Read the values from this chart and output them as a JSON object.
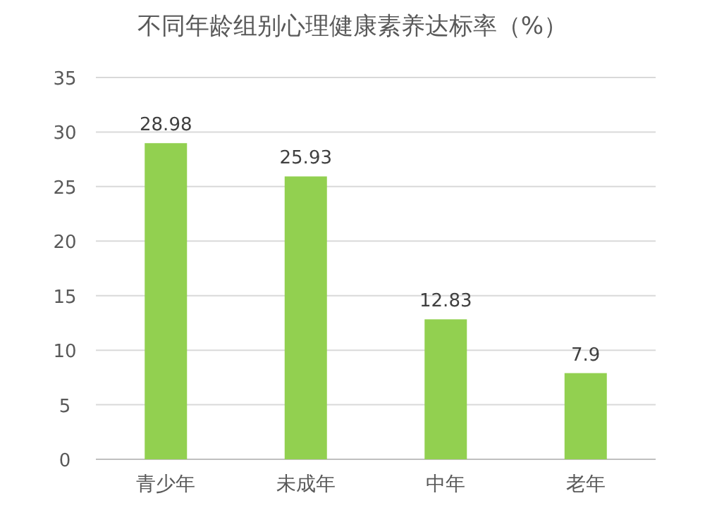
{
  "chart_data": {
    "type": "bar",
    "title": "不同年龄组别心理健康素养达标率（%）",
    "categories": [
      "青少年",
      "未成年",
      "中年",
      "老年"
    ],
    "values": [
      28.98,
      25.93,
      12.83,
      7.9
    ],
    "color": "#92d050",
    "ylim": [
      0,
      35
    ],
    "yticks": [
      0,
      5,
      10,
      15,
      20,
      25,
      30,
      35
    ],
    "grid": "y",
    "data_labels": true
  }
}
